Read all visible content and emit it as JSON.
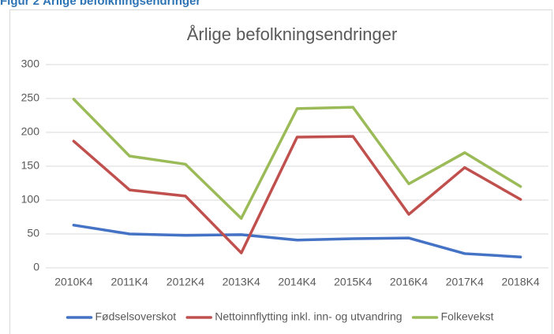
{
  "caption": "Figur 2 Årlige befolkningsendringer",
  "chart_data": {
    "type": "line",
    "title": "Årlige befolkningsendringer",
    "categories": [
      "2010K4",
      "2011K4",
      "2012K4",
      "2013K4",
      "2014K4",
      "2015K4",
      "2016K4",
      "2017K4",
      "2018K4"
    ],
    "series": [
      {
        "name": "Fødselsoverskot",
        "color": "#4472c4",
        "values": [
          63,
          50,
          48,
          49,
          41,
          43,
          44,
          21,
          16
        ]
      },
      {
        "name": "Nettoinnflytting inkl. inn- og utvandring",
        "color": "#c0504d",
        "values": [
          187,
          115,
          106,
          22,
          193,
          194,
          79,
          148,
          101
        ]
      },
      {
        "name": "Folkevekst",
        "color": "#9bbb59",
        "values": [
          249,
          165,
          153,
          73,
          235,
          237,
          124,
          170,
          120
        ]
      }
    ],
    "ylim": [
      0,
      300
    ],
    "yticks": [
      0,
      50,
      100,
      150,
      200,
      250,
      300
    ],
    "grid": true,
    "legend": "bottom"
  }
}
